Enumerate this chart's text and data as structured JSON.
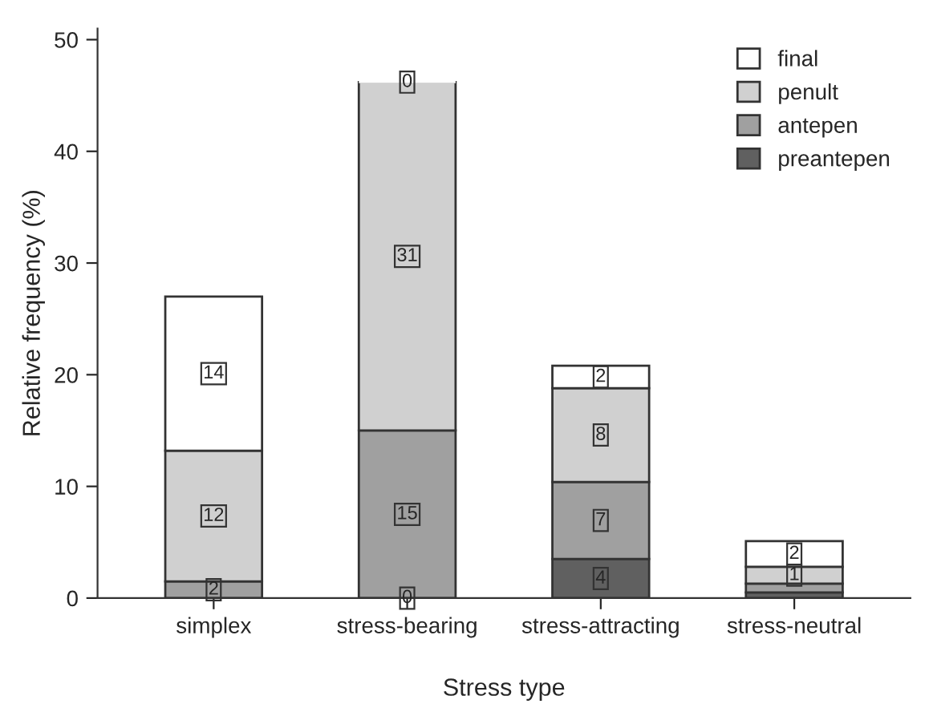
{
  "chart_data": {
    "type": "bar",
    "stacked": true,
    "xlabel": "Stress type",
    "ylabel": "Relative frequency (%)",
    "categories": [
      "simplex",
      "stress-bearing",
      "stress-attracting",
      "stress-neutral"
    ],
    "series": [
      {
        "name": "preantepen",
        "color": "#606060",
        "values": [
          0,
          0,
          3.5,
          0.5
        ],
        "value_labels": [
          null,
          "0",
          "4",
          null
        ]
      },
      {
        "name": "antepen",
        "color": "#a0a0a0",
        "values": [
          1.5,
          15.0,
          6.9,
          0.8
        ],
        "value_labels": [
          "2",
          "15",
          "7",
          null
        ]
      },
      {
        "name": "penult",
        "color": "#d0d0d0",
        "values": [
          11.7,
          31.2,
          8.4,
          1.5
        ],
        "value_labels": [
          "12",
          "31",
          "8",
          "1"
        ]
      },
      {
        "name": "final",
        "color": "#ffffff",
        "values": [
          13.8,
          0,
          2.0,
          2.3
        ],
        "value_labels": [
          "14",
          "0",
          "2",
          "2"
        ]
      }
    ],
    "ylim": [
      0,
      51
    ],
    "yticks": [
      0,
      10,
      20,
      30,
      40,
      50
    ],
    "grid": false,
    "legend": "top right"
  }
}
